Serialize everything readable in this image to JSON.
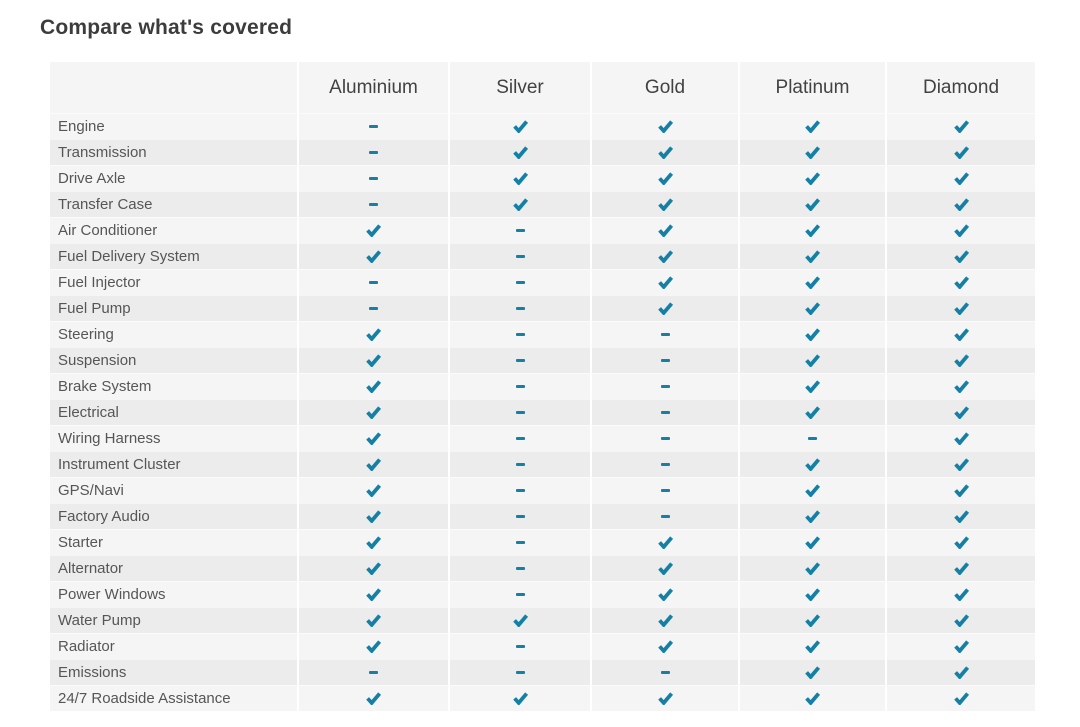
{
  "page": {
    "title": "Compare what's covered"
  },
  "table": {
    "plans": [
      "Aluminium",
      "Silver",
      "Gold",
      "Platinum",
      "Diamond"
    ],
    "rows": [
      {
        "label": "Engine",
        "coverage": [
          false,
          true,
          true,
          true,
          true
        ]
      },
      {
        "label": "Transmission",
        "coverage": [
          false,
          true,
          true,
          true,
          true
        ]
      },
      {
        "label": "Drive Axle",
        "coverage": [
          false,
          true,
          true,
          true,
          true
        ]
      },
      {
        "label": "Transfer Case",
        "coverage": [
          false,
          true,
          true,
          true,
          true
        ]
      },
      {
        "label": "Air Conditioner",
        "coverage": [
          true,
          false,
          true,
          true,
          true
        ]
      },
      {
        "label": "Fuel Delivery System",
        "coverage": [
          true,
          false,
          true,
          true,
          true
        ]
      },
      {
        "label": "Fuel Injector",
        "coverage": [
          false,
          false,
          true,
          true,
          true
        ]
      },
      {
        "label": "Fuel Pump",
        "coverage": [
          false,
          false,
          true,
          true,
          true
        ]
      },
      {
        "label": "Steering",
        "coverage": [
          true,
          false,
          false,
          true,
          true
        ]
      },
      {
        "label": "Suspension",
        "coverage": [
          true,
          false,
          false,
          true,
          true
        ]
      },
      {
        "label": "Brake System",
        "coverage": [
          true,
          false,
          false,
          true,
          true
        ]
      },
      {
        "label": "Electrical",
        "coverage": [
          true,
          false,
          false,
          true,
          true
        ]
      },
      {
        "label": "Wiring Harness",
        "coverage": [
          true,
          false,
          false,
          false,
          true
        ]
      },
      {
        "label": "Instrument Cluster",
        "coverage": [
          true,
          false,
          false,
          true,
          true
        ]
      },
      {
        "label": "GPS/Navi",
        "coverage": [
          true,
          false,
          false,
          true,
          true
        ]
      },
      {
        "label": "Factory Audio",
        "coverage": [
          true,
          false,
          false,
          true,
          true
        ]
      },
      {
        "label": "Starter",
        "coverage": [
          true,
          false,
          true,
          true,
          true
        ]
      },
      {
        "label": "Alternator",
        "coverage": [
          true,
          false,
          true,
          true,
          true
        ]
      },
      {
        "label": "Power Windows",
        "coverage": [
          true,
          false,
          true,
          true,
          true
        ]
      },
      {
        "label": "Water Pump",
        "coverage": [
          true,
          true,
          true,
          true,
          true
        ]
      },
      {
        "label": "Radiator",
        "coverage": [
          true,
          false,
          true,
          true,
          true
        ]
      },
      {
        "label": "Emissions",
        "coverage": [
          false,
          false,
          false,
          true,
          true
        ]
      },
      {
        "label": "24/7 Roadside Assistance",
        "coverage": [
          true,
          true,
          true,
          true,
          true
        ]
      }
    ]
  },
  "icons": {
    "covered": "check-icon",
    "not_covered": "dash-icon"
  },
  "colors": {
    "accent": "#1580a6",
    "row_light": "#f5f5f5",
    "row_dark": "#ececec",
    "title_text": "#3c3c3c",
    "header_text": "#424242",
    "label_text": "#565656"
  }
}
